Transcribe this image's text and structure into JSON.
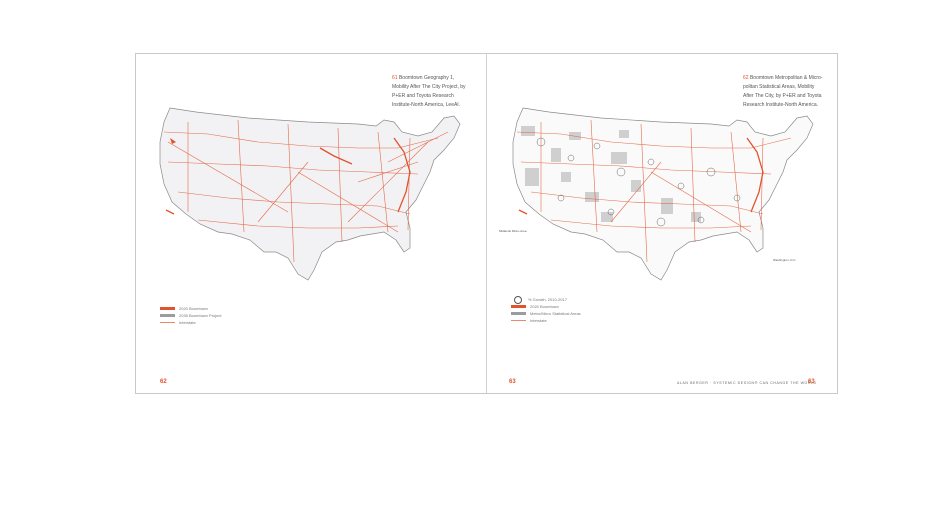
{
  "left_page": {
    "caption_fig": "61",
    "caption_text": "Boomtown Geography 1, Mobility After The City Project, by P+ER and Toyota Research Institute-North America, LeeAI.",
    "legend": [
      {
        "swatch": "bold-red",
        "label": "2020 Boomtown"
      },
      {
        "swatch": "gray",
        "label": "2035 Boomtown Project"
      },
      {
        "swatch": "thin-red",
        "label": "Interstate"
      }
    ],
    "page_number": "62"
  },
  "right_page": {
    "caption_fig": "62",
    "caption_text": "Boomtown Metropolitan & Micro-politan Statistical Areas, Mobility After The City, by P+ER and Toyota Research Institute-North America.",
    "callout_west": "Midlands Micro-Area",
    "callout_east": "Washington, D.C.",
    "legend": [
      {
        "swatch": "circle",
        "label": "% Growth, 2010-2017"
      },
      {
        "swatch": "bold-red",
        "label": "2020 Boomtown"
      },
      {
        "swatch": "gray",
        "label": "Metro/Micro Statistical Areas"
      },
      {
        "swatch": "thin-red",
        "label": "Interstate"
      }
    ],
    "page_number": "63",
    "running_head": "ALAN BERGER · SYSTEMIC DESIGN® CAN CHANGE THE WORLD",
    "running_page": "63"
  },
  "colors": {
    "accent": "#e3522d",
    "land": "#f2f2f4",
    "outline": "#8a8a8a",
    "gray_area": "#cfcfcf"
  }
}
